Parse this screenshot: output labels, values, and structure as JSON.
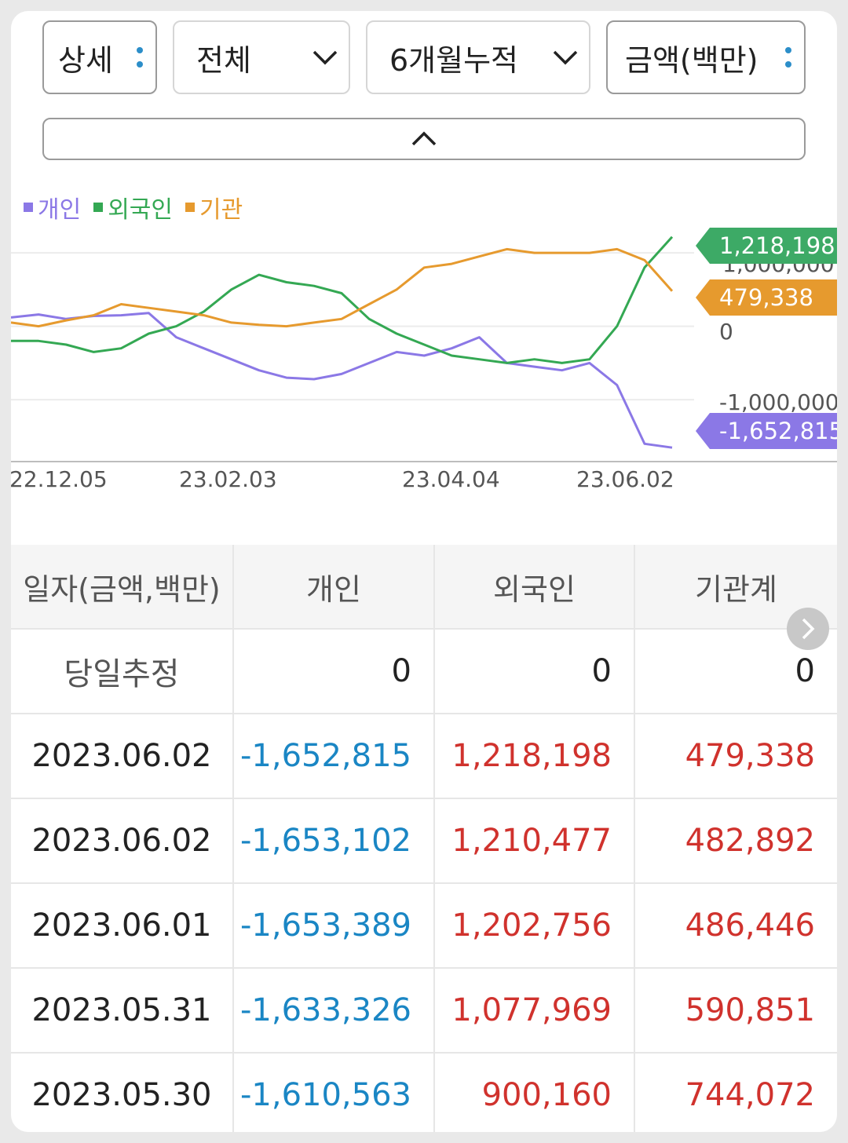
{
  "controls": {
    "detail": "상세",
    "scope": "전체",
    "period": "6개월누적",
    "unit": "금액(백만)"
  },
  "legend": [
    {
      "label": "개인",
      "color": "#8b78e6"
    },
    {
      "label": "외국인",
      "color": "#34a853"
    },
    {
      "label": "기관",
      "color": "#e69a2e"
    }
  ],
  "chart_data": {
    "type": "line",
    "x_ticks": [
      "22.12.05",
      "23.02.03",
      "23.04.04",
      "23.06.02"
    ],
    "y_ticks": [
      "1,000,000",
      "0",
      "-1,000,000"
    ],
    "ylim": [
      -1800000,
      1300000
    ],
    "series": [
      {
        "name": "개인",
        "color": "#8b78e6",
        "last_label": "-1,652,815",
        "values": [
          120000,
          160000,
          100000,
          140000,
          150000,
          180000,
          -150000,
          -300000,
          -450000,
          -600000,
          -700000,
          -720000,
          -650000,
          -500000,
          -350000,
          -400000,
          -300000,
          -150000,
          -500000,
          -550000,
          -600000,
          -500000,
          -800000,
          -1600000,
          -1652815
        ]
      },
      {
        "name": "외국인",
        "color": "#34a853",
        "last_label": "1,218,198",
        "values": [
          -200000,
          -200000,
          -250000,
          -350000,
          -300000,
          -100000,
          0,
          200000,
          500000,
          700000,
          600000,
          550000,
          450000,
          100000,
          -100000,
          -250000,
          -400000,
          -450000,
          -500000,
          -450000,
          -500000,
          -450000,
          0,
          800000,
          1218198
        ]
      },
      {
        "name": "기관",
        "color": "#e69a2e",
        "last_label": "479,338",
        "values": [
          50000,
          0,
          80000,
          150000,
          300000,
          250000,
          200000,
          150000,
          50000,
          20000,
          0,
          50000,
          100000,
          300000,
          500000,
          800000,
          850000,
          950000,
          1050000,
          1000000,
          1000000,
          1000000,
          1050000,
          900000,
          479338
        ]
      }
    ]
  },
  "table": {
    "headers": [
      "일자(금액,백만)",
      "개인",
      "외국인",
      "기관계"
    ],
    "estimate": {
      "label": "당일추정",
      "values": [
        "0",
        "0",
        "0"
      ]
    },
    "rows": [
      {
        "date": "2023.06.02",
        "individual": "-1,652,815",
        "foreign": "1,218,198",
        "institution": "479,338"
      },
      {
        "date": "2023.06.02",
        "individual": "-1,653,102",
        "foreign": "1,210,477",
        "institution": "482,892"
      },
      {
        "date": "2023.06.01",
        "individual": "-1,653,389",
        "foreign": "1,202,756",
        "institution": "486,446"
      },
      {
        "date": "2023.05.31",
        "individual": "-1,633,326",
        "foreign": "1,077,969",
        "institution": "590,851"
      },
      {
        "date": "2023.05.30",
        "individual": "-1,610,563",
        "foreign": "900,160",
        "institution": "744,072"
      }
    ]
  }
}
